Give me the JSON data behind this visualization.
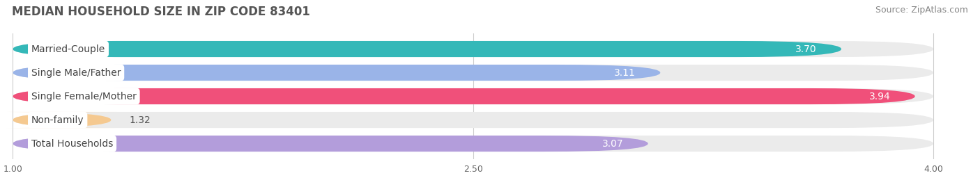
{
  "title": "MEDIAN HOUSEHOLD SIZE IN ZIP CODE 83401",
  "source": "Source: ZipAtlas.com",
  "categories": [
    "Married-Couple",
    "Single Male/Father",
    "Single Female/Mother",
    "Non-family",
    "Total Households"
  ],
  "values": [
    3.7,
    3.11,
    3.94,
    1.32,
    3.07
  ],
  "bar_colors": [
    "#34b8b8",
    "#9ab4e8",
    "#f0507a",
    "#f5c990",
    "#b39ddb"
  ],
  "label_colors": [
    "white",
    "white",
    "white",
    "#555555",
    "white"
  ],
  "xticks": [
    1.0,
    2.5,
    4.0
  ],
  "xmin": 1.0,
  "xmax": 4.0,
  "background_color": "#ffffff",
  "bar_bg_color": "#ebebeb",
  "title_fontsize": 12,
  "source_fontsize": 9,
  "bar_label_fontsize": 10,
  "category_fontsize": 10,
  "figsize": [
    14.06,
    2.69
  ],
  "dpi": 100
}
